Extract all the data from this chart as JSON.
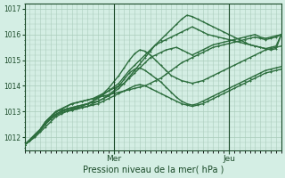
{
  "bg_color": "#d4eee4",
  "grid_color": "#aaccbb",
  "line_color": "#2d6e3e",
  "line_color2": "#1a4a28",
  "title": "Pression niveau de la mer( hPa )",
  "ylabel_ticks": [
    1012,
    1013,
    1014,
    1015,
    1016,
    1017
  ],
  "ylim": [
    1011.5,
    1017.2
  ],
  "xlim": [
    0,
    49
  ],
  "vline_x": [
    17,
    39
  ],
  "xlabel_labels": [
    "Mer",
    "Jeu"
  ],
  "series": [
    [
      1011.7,
      1011.9,
      1012.1,
      1012.3,
      1012.6,
      1012.8,
      1013.0,
      1013.1,
      1013.2,
      1013.3,
      1013.35,
      1013.4,
      1013.45,
      1013.5,
      1013.55,
      1013.6,
      1013.65,
      1013.7,
      1013.75,
      1013.8,
      1013.85,
      1013.9,
      1013.95,
      1014.0,
      1014.1,
      1014.2,
      1014.3,
      1014.45,
      1014.6,
      1014.75,
      1014.9,
      1015.0,
      1015.1,
      1015.2,
      1015.3,
      1015.4,
      1015.5,
      1015.55,
      1015.6,
      1015.65,
      1015.7,
      1015.75,
      1015.8,
      1015.85,
      1015.9,
      1015.85,
      1015.8,
      1015.85,
      1015.9,
      1016.0
    ],
    [
      1011.7,
      1011.9,
      1012.1,
      1012.3,
      1012.6,
      1012.8,
      1013.0,
      1013.1,
      1013.2,
      1013.3,
      1013.35,
      1013.4,
      1013.45,
      1013.5,
      1013.6,
      1013.7,
      1013.8,
      1013.9,
      1014.0,
      1014.1,
      1014.3,
      1014.5,
      1014.7,
      1014.9,
      1015.1,
      1015.2,
      1015.3,
      1015.4,
      1015.45,
      1015.5,
      1015.4,
      1015.3,
      1015.2,
      1015.3,
      1015.4,
      1015.5,
      1015.6,
      1015.65,
      1015.7,
      1015.75,
      1015.8,
      1015.85,
      1015.9,
      1015.95,
      1016.0,
      1015.9,
      1015.85,
      1015.9,
      1015.95,
      1016.0
    ],
    [
      1011.7,
      1011.9,
      1012.1,
      1012.3,
      1012.6,
      1012.8,
      1013.0,
      1013.05,
      1013.1,
      1013.15,
      1013.2,
      1013.25,
      1013.3,
      1013.4,
      1013.5,
      1013.65,
      1013.8,
      1013.95,
      1014.1,
      1014.35,
      1014.6,
      1014.8,
      1015.0,
      1015.2,
      1015.4,
      1015.6,
      1015.7,
      1015.8,
      1015.9,
      1016.0,
      1016.1,
      1016.2,
      1016.3,
      1016.2,
      1016.1,
      1016.0,
      1015.95,
      1015.9,
      1015.85,
      1015.8,
      1015.75,
      1015.7,
      1015.65,
      1015.6,
      1015.55,
      1015.5,
      1015.45,
      1015.5,
      1015.55,
      1016.0
    ],
    [
      1011.7,
      1011.85,
      1012.1,
      1012.3,
      1012.55,
      1012.75,
      1012.9,
      1013.0,
      1013.1,
      1013.15,
      1013.2,
      1013.25,
      1013.3,
      1013.35,
      1013.4,
      1013.5,
      1013.6,
      1013.75,
      1013.9,
      1014.1,
      1014.35,
      1014.6,
      1014.85,
      1015.1,
      1015.35,
      1015.6,
      1015.8,
      1016.0,
      1016.2,
      1016.4,
      1016.6,
      1016.75,
      1016.7,
      1016.6,
      1016.5,
      1016.4,
      1016.3,
      1016.2,
      1016.1,
      1016.0,
      1015.9,
      1015.8,
      1015.7,
      1015.6,
      1015.55,
      1015.5,
      1015.45,
      1015.4,
      1015.45,
      1016.0
    ],
    [
      1011.7,
      1011.85,
      1012.1,
      1012.3,
      1012.55,
      1012.75,
      1012.9,
      1013.0,
      1013.05,
      1013.1,
      1013.15,
      1013.2,
      1013.3,
      1013.4,
      1013.55,
      1013.7,
      1013.9,
      1014.15,
      1014.4,
      1014.7,
      1015.0,
      1015.25,
      1015.4,
      1015.35,
      1015.2,
      1015.0,
      1014.8,
      1014.6,
      1014.4,
      1014.3,
      1014.2,
      1014.15,
      1014.1,
      1014.15,
      1014.2,
      1014.3,
      1014.4,
      1014.5,
      1014.6,
      1014.7,
      1014.8,
      1014.9,
      1015.0,
      1015.1,
      1015.2,
      1015.3,
      1015.4,
      1015.45,
      1015.5,
      1015.55
    ],
    [
      1011.7,
      1011.85,
      1012.05,
      1012.25,
      1012.5,
      1012.7,
      1012.85,
      1012.95,
      1013.0,
      1013.05,
      1013.1,
      1013.15,
      1013.2,
      1013.3,
      1013.4,
      1013.5,
      1013.65,
      1013.8,
      1014.0,
      1014.25,
      1014.5,
      1014.65,
      1014.7,
      1014.6,
      1014.45,
      1014.3,
      1014.15,
      1013.95,
      1013.75,
      1013.55,
      1013.4,
      1013.3,
      1013.25,
      1013.3,
      1013.4,
      1013.5,
      1013.6,
      1013.7,
      1013.8,
      1013.9,
      1014.0,
      1014.1,
      1014.2,
      1014.3,
      1014.4,
      1014.5,
      1014.6,
      1014.65,
      1014.7,
      1014.75
    ],
    [
      1011.7,
      1011.85,
      1012.0,
      1012.2,
      1012.4,
      1012.6,
      1012.8,
      1012.9,
      1013.0,
      1013.05,
      1013.1,
      1013.15,
      1013.2,
      1013.25,
      1013.3,
      1013.4,
      1013.5,
      1013.6,
      1013.7,
      1013.8,
      1013.9,
      1014.0,
      1014.05,
      1014.0,
      1013.9,
      1013.8,
      1013.7,
      1013.6,
      1013.5,
      1013.4,
      1013.3,
      1013.25,
      1013.2,
      1013.25,
      1013.3,
      1013.4,
      1013.5,
      1013.6,
      1013.7,
      1013.8,
      1013.9,
      1014.0,
      1014.1,
      1014.2,
      1014.3,
      1014.4,
      1014.5,
      1014.55,
      1014.6,
      1014.65
    ]
  ]
}
